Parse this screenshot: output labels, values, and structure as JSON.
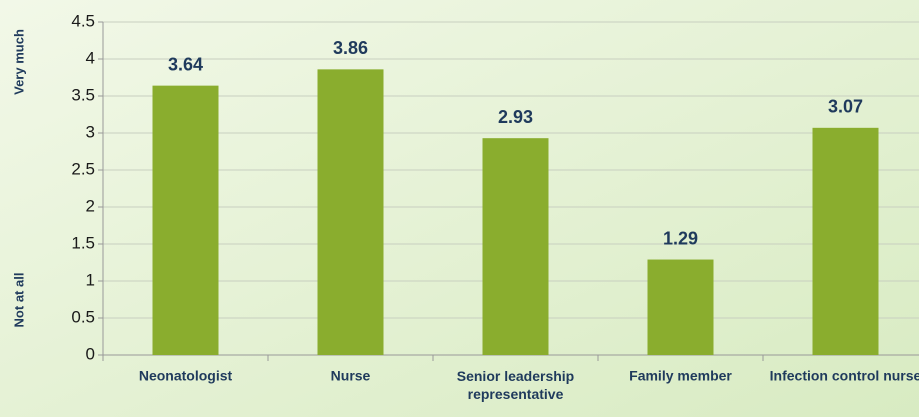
{
  "chart_data": {
    "type": "bar",
    "y_label_top": "Very much",
    "y_label_bottom": "Not at all",
    "categories": [
      "Neonatologist",
      "Nurse",
      "Senior leadership representative",
      "Family member",
      "Infection control nurse"
    ],
    "values": [
      3.64,
      3.86,
      2.93,
      1.29,
      3.07
    ],
    "color": "#8aad2e",
    "ylim": [
      0,
      4.5
    ],
    "yticks": [
      0,
      0.5,
      1,
      1.5,
      2,
      2.5,
      3,
      3.5,
      4,
      4.5
    ],
    "grid": true
  }
}
